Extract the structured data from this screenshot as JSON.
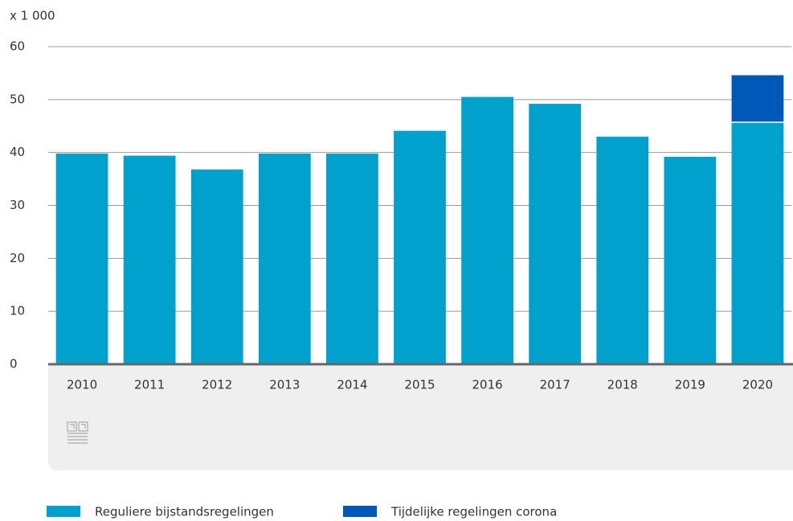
{
  "chart_data": {
    "type": "stacked_bar",
    "y_label": "x 1 000",
    "categories": [
      "2010",
      "2011",
      "2012",
      "2013",
      "2014",
      "2015",
      "2016",
      "2017",
      "2018",
      "2019",
      "2020"
    ],
    "series": [
      {
        "name": "Reguliere bijstandsregelingen",
        "color": "#00a1cd",
        "values": [
          39.8,
          39.4,
          36.8,
          39.8,
          39.8,
          44.1,
          50.5,
          49.2,
          43.0,
          39.2,
          45.6
        ]
      },
      {
        "name": "Tijdelijke regelingen corona",
        "color": "#0058b8",
        "values": [
          null,
          null,
          null,
          null,
          null,
          null,
          null,
          null,
          null,
          null,
          9.0
        ]
      }
    ],
    "ylim": [
      0,
      60
    ],
    "yticks": [
      0,
      10,
      20,
      30,
      40,
      50,
      60
    ],
    "grid": true,
    "legend": "bottom"
  }
}
